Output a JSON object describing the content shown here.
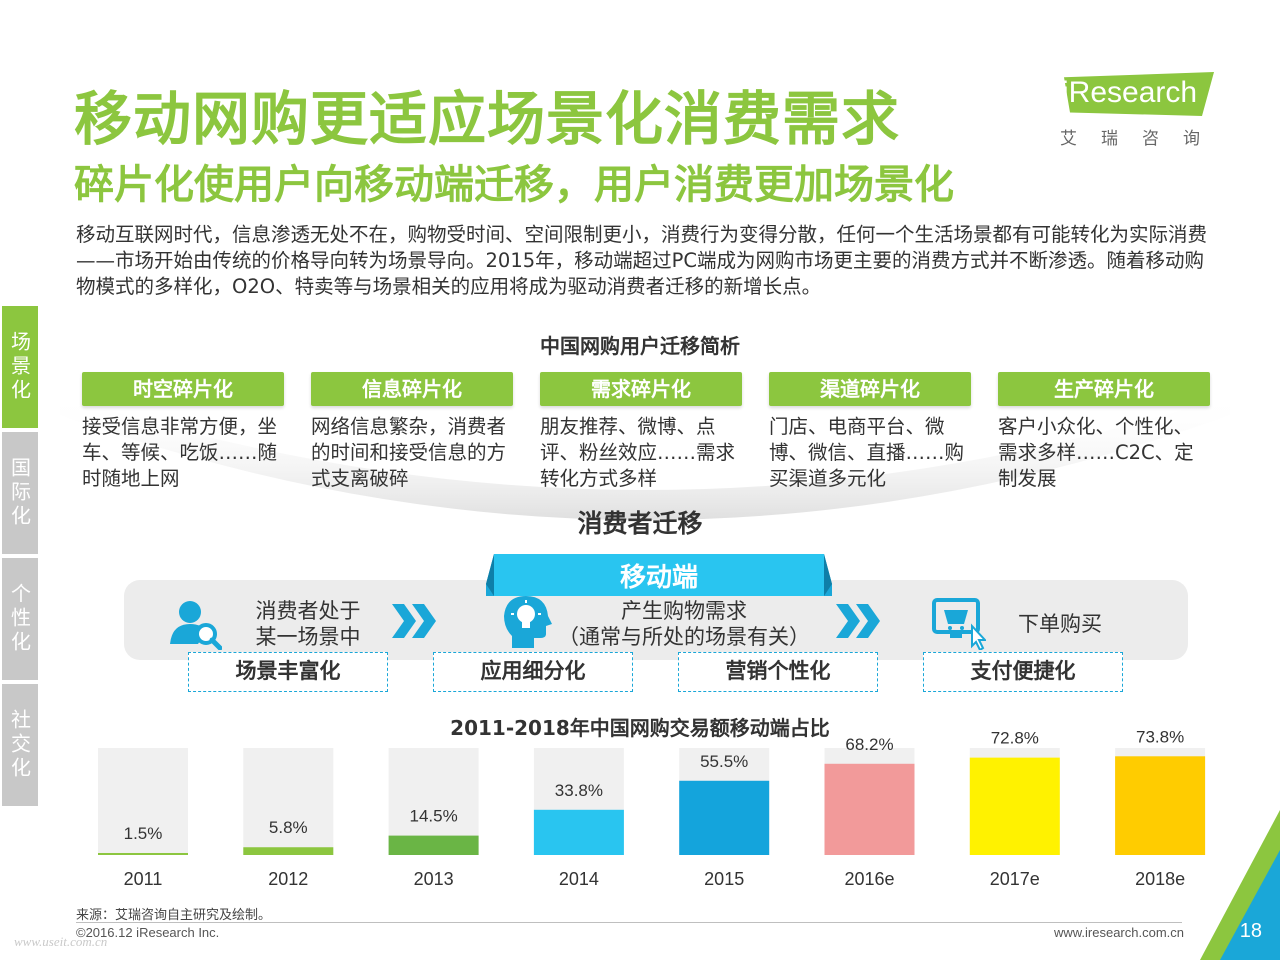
{
  "title": "移动网购更适应场景化消费需求",
  "subtitle": "碎片化使用户向移动端迁移，用户消费更加场景化",
  "logo": {
    "brand_i": "i",
    "brand_rest": "Research",
    "cn": "艾瑞咨询"
  },
  "intro": "移动互联网时代，信息渗透无处不在，购物受时间、空间限制更小，消费行为变得分散，任何一个生活场景都有可能转化为实际消费——市场开始由传统的价格导向转为场景导向。2015年，移动端超过PC端成为网购市场更主要的消费方式并不断渗透。随着移动购物模式的多样化，O2O、特卖等与场景相关的应用将成为驱动消费者迁移的新增长点。",
  "side_tabs": [
    "场景化",
    "国际化",
    "个性化",
    "社交化"
  ],
  "diagram_title": "中国网购用户迁移简析",
  "fragments": [
    {
      "head": "时空碎片化",
      "text": "接受信息非常方便，坐车、等候、吃饭……随时随地上网"
    },
    {
      "head": "信息碎片化",
      "text": "网络信息繁杂，消费者的时间和接受信息的方式支离破碎"
    },
    {
      "head": "需求碎片化",
      "text": "朋友推荐、微博、点评、粉丝效应……需求转化方式多样"
    },
    {
      "head": "渠道碎片化",
      "text": "门店、电商平台、微博、微信、直播……购买渠道多元化"
    },
    {
      "head": "生产碎片化",
      "text": "客户小众化、个性化、需求多样……C2C、定制发展"
    }
  ],
  "migrate_label": "消费者迁移",
  "mobile_label": "移动端",
  "steps": [
    {
      "line1": "消费者处于",
      "line2": "某一场景中",
      "icon": "user-search-icon"
    },
    {
      "line1": "产生购物需求",
      "line2": "（通常与所处的场景有关）",
      "icon": "head-lightbulb-icon"
    },
    {
      "line1": "下单购买",
      "line2": "",
      "icon": "shopping-basket-screen-icon"
    }
  ],
  "tags": [
    "场景丰富化",
    "应用细分化",
    "营销个性化",
    "支付便捷化"
  ],
  "chart_data": {
    "type": "bar",
    "title": "2011-2018年中国网购交易额移动端占比",
    "categories": [
      "2011",
      "2012",
      "2013",
      "2014",
      "2015",
      "2016e",
      "2017e",
      "2018e"
    ],
    "values": [
      1.5,
      5.8,
      14.5,
      33.8,
      55.5,
      68.2,
      72.8,
      73.8
    ],
    "value_labels": [
      "1.5%",
      "5.8%",
      "14.5%",
      "33.8%",
      "55.5%",
      "68.2%",
      "72.8%",
      "73.8%"
    ],
    "ylim": [
      0,
      100
    ],
    "colors": [
      "#8cc63f",
      "#8cc63f",
      "#6ab545",
      "#29c5f0",
      "#14a4dc",
      "#f29a9a",
      "#fff200",
      "#ffcc00"
    ],
    "background_color": "#f0f0f0",
    "xlabel": "",
    "ylabel": ""
  },
  "source": "来源：艾瑞咨询自主研究及绘制。",
  "copyright": "©2016.12 iResearch Inc.",
  "website": "www.iresearch.com.cn",
  "watermark": "www.useit.com.cn",
  "page_number": "18",
  "colors": {
    "accent_green": "#8cc63f",
    "accent_blue": "#1aa7d8"
  }
}
